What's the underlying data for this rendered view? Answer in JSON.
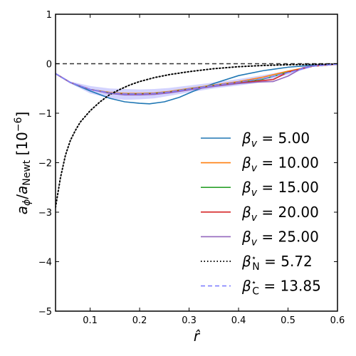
{
  "chart_data": {
    "type": "line",
    "xlabel": "r̂",
    "ylabel": "a_φ/a_Newt [10^−6]",
    "xlim": [
      0.03,
      0.6
    ],
    "ylim": [
      -5,
      1
    ],
    "x_ticks": [
      0.1,
      0.2,
      0.3,
      0.4,
      0.5,
      0.6
    ],
    "x_tick_labels": [
      "0.1",
      "0.2",
      "0.3",
      "0.4",
      "0.5",
      "0.6"
    ],
    "y_ticks": [
      -5,
      -4,
      -3,
      -2,
      -1,
      0,
      1
    ],
    "y_tick_labels": [
      "−5",
      "−4",
      "−3",
      "−2",
      "−1",
      "0",
      "1"
    ],
    "grid": false,
    "legend_position": "lower-right",
    "zero_line": {
      "y": 0,
      "style": "dashed",
      "color": "#333333"
    },
    "series": [
      {
        "name": "β_v = 5.00",
        "color": "#1f77b4",
        "style": "solid",
        "x": [
          0.03,
          0.06,
          0.1,
          0.14,
          0.17,
          0.2,
          0.22,
          0.25,
          0.28,
          0.31,
          0.35,
          0.4,
          0.45,
          0.5,
          0.55,
          0.6
        ],
        "y": [
          -0.2,
          -0.38,
          -0.55,
          -0.7,
          -0.77,
          -0.8,
          -0.81,
          -0.77,
          -0.68,
          -0.55,
          -0.4,
          -0.24,
          -0.14,
          -0.07,
          -0.03,
          -0.01
        ]
      },
      {
        "name": "β_v = 10.00",
        "color": "#ff7f0e",
        "style": "solid",
        "x": [
          0.03,
          0.06,
          0.1,
          0.14,
          0.17,
          0.2,
          0.23,
          0.26,
          0.3,
          0.35,
          0.4,
          0.45,
          0.5,
          0.55,
          0.6
        ],
        "y": [
          -0.2,
          -0.38,
          -0.52,
          -0.58,
          -0.6,
          -0.6,
          -0.59,
          -0.56,
          -0.5,
          -0.43,
          -0.36,
          -0.27,
          -0.15,
          -0.05,
          -0.01
        ]
      },
      {
        "name": "β_v = 15.00",
        "color": "#2ca02c",
        "style": "solid",
        "x": [
          0.03,
          0.06,
          0.1,
          0.14,
          0.17,
          0.2,
          0.23,
          0.26,
          0.3,
          0.35,
          0.4,
          0.45,
          0.5,
          0.55,
          0.6
        ],
        "y": [
          -0.2,
          -0.38,
          -0.52,
          -0.59,
          -0.61,
          -0.61,
          -0.6,
          -0.57,
          -0.51,
          -0.44,
          -0.38,
          -0.31,
          -0.17,
          -0.05,
          -0.01
        ]
      },
      {
        "name": "β_v = 20.00",
        "color": "#d62728",
        "style": "solid",
        "x": [
          0.03,
          0.06,
          0.1,
          0.14,
          0.17,
          0.2,
          0.23,
          0.26,
          0.3,
          0.35,
          0.4,
          0.44,
          0.47,
          0.5,
          0.55,
          0.6
        ],
        "y": [
          -0.2,
          -0.38,
          -0.52,
          -0.6,
          -0.62,
          -0.62,
          -0.61,
          -0.58,
          -0.52,
          -0.45,
          -0.39,
          -0.35,
          -0.32,
          -0.17,
          -0.05,
          -0.01
        ]
      },
      {
        "name": "β_v = 25.00",
        "color": "#9467bd",
        "style": "solid",
        "x": [
          0.03,
          0.06,
          0.1,
          0.14,
          0.17,
          0.2,
          0.23,
          0.26,
          0.3,
          0.35,
          0.4,
          0.44,
          0.47,
          0.5,
          0.53,
          0.56,
          0.6
        ],
        "y": [
          -0.2,
          -0.38,
          -0.52,
          -0.6,
          -0.63,
          -0.63,
          -0.62,
          -0.59,
          -0.53,
          -0.46,
          -0.4,
          -0.37,
          -0.36,
          -0.25,
          -0.08,
          -0.03,
          -0.01
        ]
      },
      {
        "name": "β*_N = 5.72",
        "color": "#000000",
        "style": "dotted",
        "x": [
          0.03,
          0.04,
          0.05,
          0.06,
          0.07,
          0.08,
          0.1,
          0.12,
          0.14,
          0.16,
          0.18,
          0.2,
          0.23,
          0.26,
          0.3,
          0.35,
          0.4,
          0.45,
          0.5,
          0.6
        ],
        "y": [
          -2.9,
          -2.3,
          -1.85,
          -1.55,
          -1.35,
          -1.18,
          -0.95,
          -0.77,
          -0.62,
          -0.52,
          -0.43,
          -0.36,
          -0.28,
          -0.22,
          -0.16,
          -0.1,
          -0.06,
          -0.035,
          -0.02,
          -0.005
        ]
      },
      {
        "name": "β*_C = 13.85",
        "color": "#8080ff",
        "style": "dashed",
        "x": [
          0.03,
          0.06,
          0.1,
          0.14,
          0.17,
          0.2,
          0.23,
          0.26,
          0.3,
          0.35,
          0.4,
          0.45,
          0.5,
          0.55,
          0.6
        ],
        "y": [
          -0.2,
          -0.38,
          -0.52,
          -0.59,
          -0.61,
          -0.61,
          -0.6,
          -0.57,
          -0.51,
          -0.44,
          -0.37,
          -0.3,
          -0.18,
          -0.05,
          -0.01
        ]
      }
    ],
    "bands": [
      {
        "color": "#8080ff",
        "x": [
          0.03,
          0.06,
          0.1,
          0.14,
          0.17,
          0.2,
          0.23,
          0.26,
          0.3,
          0.35,
          0.4,
          0.45,
          0.5,
          0.55,
          0.6
        ],
        "y_low": [
          -0.22,
          -0.4,
          -0.6,
          -0.7,
          -0.73,
          -0.72,
          -0.7,
          -0.65,
          -0.58,
          -0.5,
          -0.44,
          -0.37,
          -0.22,
          -0.06,
          -0.01
        ],
        "y_high": [
          -0.18,
          -0.36,
          -0.45,
          -0.5,
          -0.51,
          -0.52,
          -0.51,
          -0.49,
          -0.44,
          -0.38,
          -0.31,
          -0.23,
          -0.14,
          -0.04,
          -0.01
        ]
      }
    ],
    "legend": [
      {
        "series_index": 0,
        "label": "βv = 5.00"
      },
      {
        "series_index": 1,
        "label": "βv = 10.00"
      },
      {
        "series_index": 2,
        "label": "βv = 15.00"
      },
      {
        "series_index": 3,
        "label": "βv = 20.00"
      },
      {
        "series_index": 4,
        "label": "βv = 25.00"
      },
      {
        "series_index": 5,
        "label": "β*N = 5.72"
      },
      {
        "series_index": 6,
        "label": "β*C = 13.85"
      }
    ]
  }
}
